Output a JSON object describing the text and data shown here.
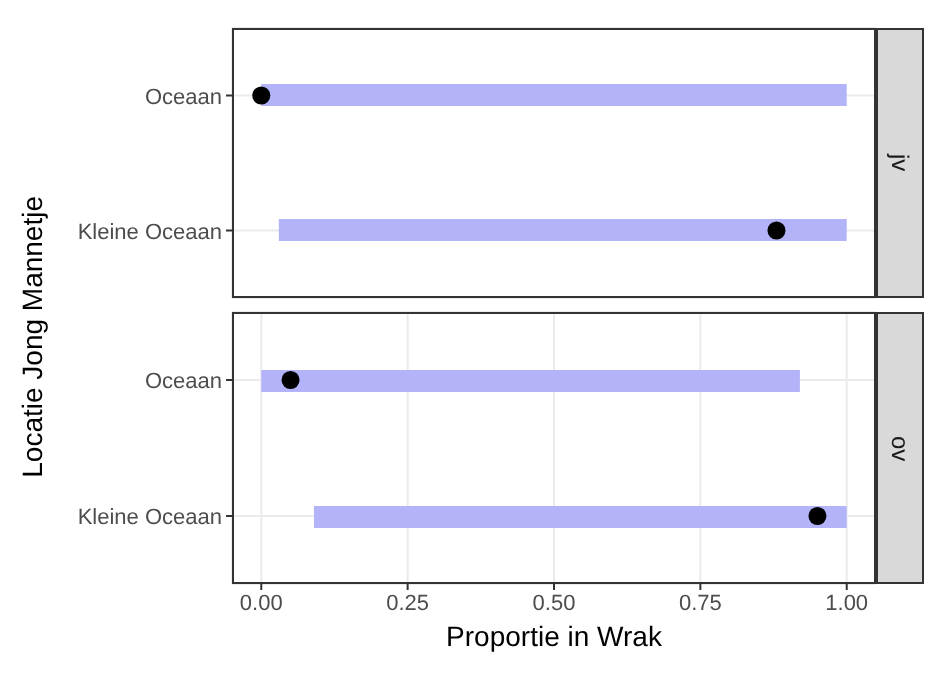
{
  "chart_data": [
    {
      "type": "bar",
      "orientation": "horizontal",
      "title": "jv",
      "ylabel": "Locatie Jong Mannetje",
      "categories": [
        "Oceaan",
        "Kleine Oceaan"
      ],
      "xlim": [
        -0.05,
        1.05
      ],
      "xticks": [
        {
          "value": 0,
          "label": null
        },
        {
          "value": 0.25,
          "label": null
        },
        {
          "value": 0.5,
          "label": null
        },
        {
          "value": 0.75,
          "label": null
        },
        {
          "value": 1,
          "label": null
        }
      ],
      "tick_labels": "y",
      "grid": true,
      "marker": "circle",
      "series": [
        {
          "color": "#b3b3fa",
          "values": [
            1,
            0.97
          ],
          "base": [
            0,
            0.03
          ]
        },
        {
          "type": "scatter",
          "color": "#000000",
          "x": [
            "Oceaan",
            "Kleine Oceaan"
          ],
          "values": [
            0,
            0.88
          ]
        }
      ]
    },
    {
      "type": "bar",
      "orientation": "horizontal",
      "title": "ov",
      "xlabel": "Proportie in Wrak",
      "categories": [
        "Oceaan",
        "Kleine Oceaan"
      ],
      "xlim": [
        -0.05,
        1.05
      ],
      "xticks": [
        {
          "value": 0,
          "label": "0.00"
        },
        {
          "value": 0.25,
          "label": "0.25"
        },
        {
          "value": 0.5,
          "label": "0.50"
        },
        {
          "value": 0.75,
          "label": "0.75"
        },
        {
          "value": 1,
          "label": "1.00"
        }
      ],
      "grid": true,
      "marker": "circle",
      "series": [
        {
          "color": "#b3b3fa",
          "values": [
            0.92,
            0.91
          ],
          "base": [
            0,
            0.09
          ]
        },
        {
          "type": "scatter",
          "color": "#000000",
          "x": [
            "Oceaan",
            "Kleine Oceaan"
          ],
          "values": [
            0.05,
            0.95
          ]
        }
      ]
    }
  ]
}
